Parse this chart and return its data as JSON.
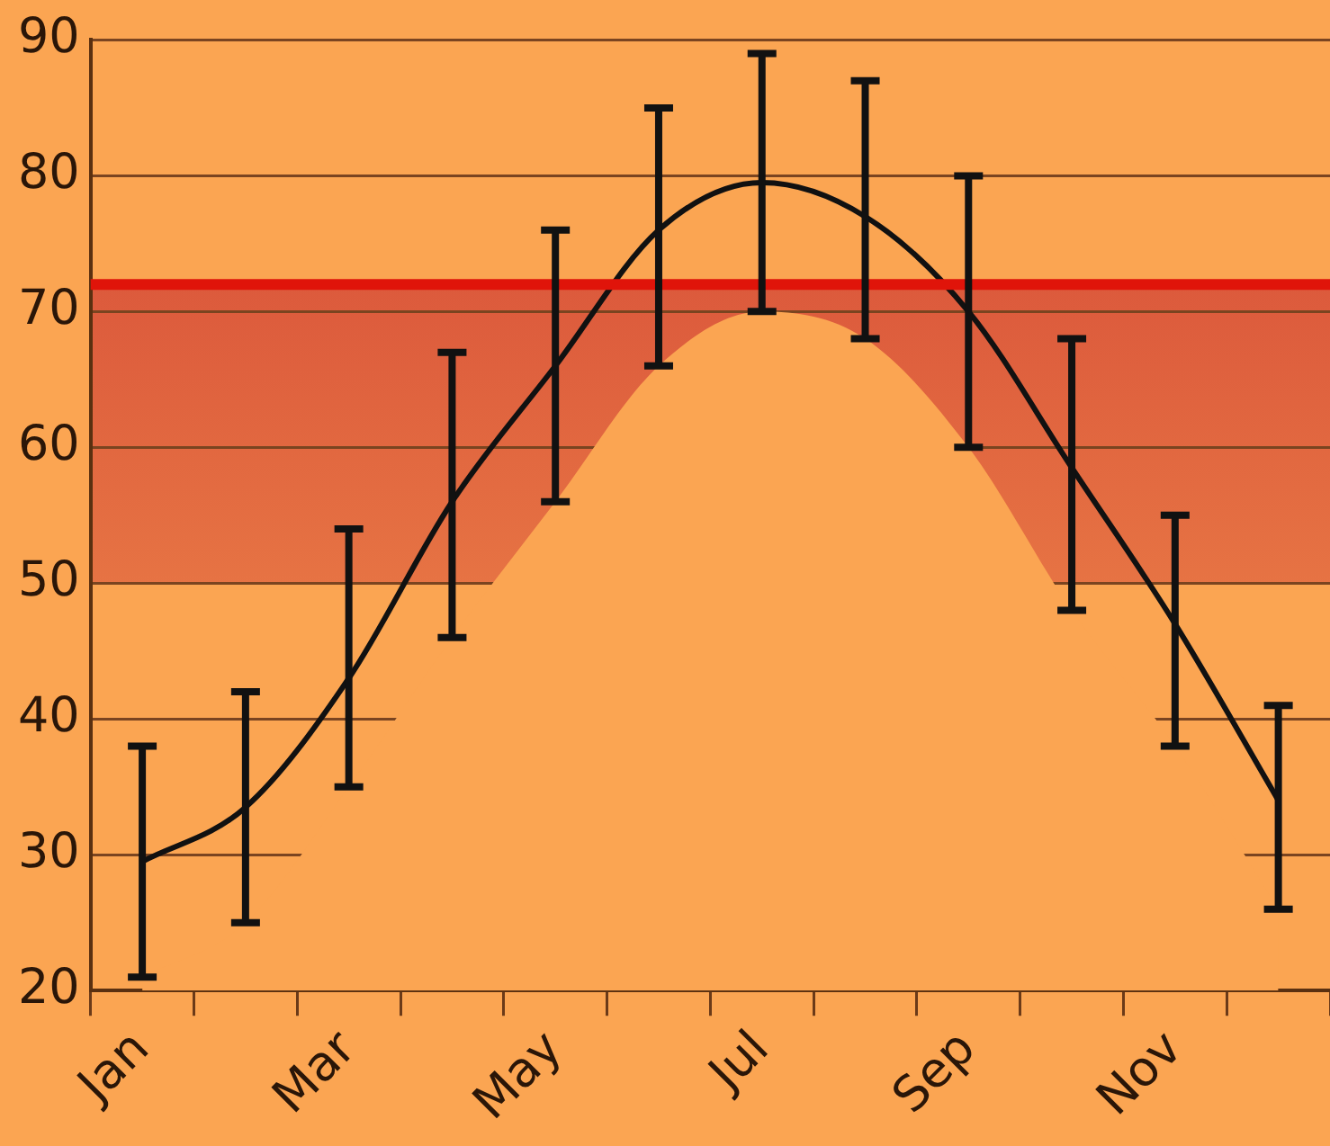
{
  "chart_data": {
    "type": "line",
    "categories": [
      "Jan",
      null,
      "Mar",
      null,
      "May",
      null,
      "Jul",
      null,
      "Sep",
      null,
      "Nov",
      null
    ],
    "series": [
      {
        "type": "area",
        "color": "#fba552",
        "values": [
          21,
          25,
          35,
          46,
          56,
          66,
          70,
          68,
          60,
          48,
          38,
          26
        ]
      },
      {
        "color": "#111111",
        "values": [
          29.5,
          33.5,
          43,
          56,
          66,
          76,
          79.5,
          77,
          70,
          58.5,
          47,
          34
        ],
        "errors": [
          [
            21,
            38
          ],
          [
            25,
            42
          ],
          [
            35,
            54
          ],
          [
            46,
            67
          ],
          [
            56,
            76
          ],
          [
            66,
            85
          ],
          [
            70,
            89
          ],
          [
            68,
            87
          ],
          [
            60,
            80
          ],
          [
            48,
            68
          ],
          [
            38,
            55
          ],
          [
            26,
            41
          ]
        ]
      }
    ],
    "ylim": [
      20,
      90
    ],
    "yticks": [
      20,
      30,
      40,
      50,
      60,
      70,
      80,
      90
    ],
    "grid": "y",
    "marker": "none",
    "line_style": "solid",
    "bands": [
      {
        "axis": "y",
        "from": 50,
        "to": 72,
        "color": "#dc5a3c"
      }
    ],
    "ref_lines": [
      {
        "axis": "y",
        "value": 72,
        "color": "#e0140a"
      }
    ]
  }
}
